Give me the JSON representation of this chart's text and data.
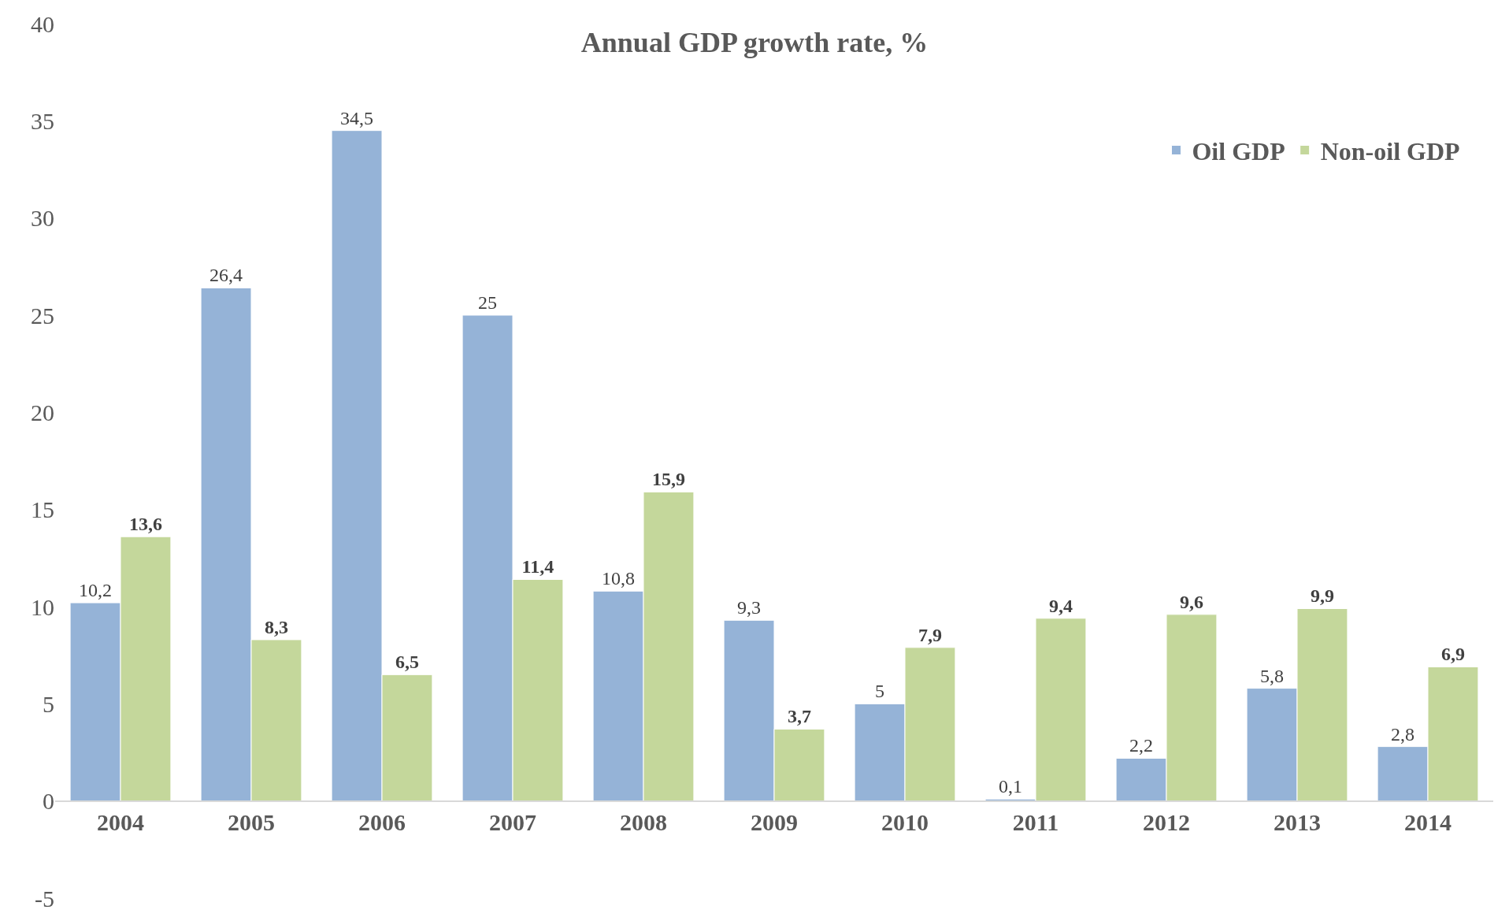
{
  "chart_data": {
    "type": "bar",
    "title": "Annual GDP growth rate, %",
    "categories": [
      "2004",
      "2005",
      "2006",
      "2007",
      "2008",
      "2009",
      "2010",
      "2011",
      "2012",
      "2013",
      "2014"
    ],
    "series": [
      {
        "name": "Oil GDP",
        "color": "#95b3d7",
        "values": [
          10.2,
          26.4,
          34.5,
          25,
          10.8,
          9.3,
          5,
          0.1,
          2.2,
          5.8,
          2.8
        ],
        "value_labels": [
          "10,2",
          "26,4",
          "34,5",
          "25",
          "10,8",
          "9,3",
          "5",
          "0,1",
          "2,2",
          "5,8",
          "2,8"
        ]
      },
      {
        "name": "Non-oil GDP",
        "color": "#c4d79b",
        "values": [
          13.6,
          8.3,
          6.5,
          11.4,
          15.9,
          3.7,
          7.9,
          9.4,
          9.6,
          9.9,
          6.9
        ],
        "value_labels": [
          "13,6",
          "8,3",
          "6,5",
          "11,4",
          "15,9",
          "3,7",
          "7,9",
          "9,4",
          "9,6",
          "9,9",
          "6,9"
        ]
      }
    ],
    "ylim": [
      -5,
      40
    ],
    "yticks": [
      -5,
      0,
      5,
      10,
      15,
      20,
      25,
      30,
      35,
      40
    ],
    "legend": "top right"
  }
}
